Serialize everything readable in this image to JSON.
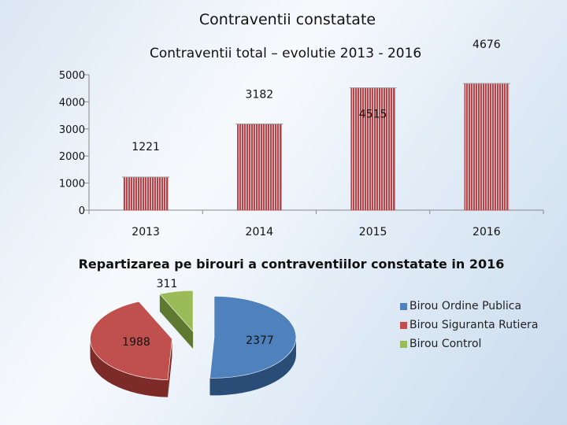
{
  "slide": {
    "title": "Contraventii constatate"
  },
  "chart_data": [
    {
      "type": "bar",
      "title": "Contraventii total – evolutie 2013 - 2016",
      "categories": [
        "2013",
        "2014",
        "2015",
        "2016"
      ],
      "values": [
        1221,
        3182,
        4515,
        4676
      ],
      "data_labels": [
        "1221",
        "3182",
        "4515",
        "4676"
      ],
      "yticks": [
        "0",
        "1000",
        "2000",
        "3000",
        "4000",
        "5000"
      ],
      "ylim": [
        0,
        5000
      ],
      "bar_color": "#b8434a",
      "bar_stripe_color": "#ffffff",
      "grid": false
    },
    {
      "type": "pie",
      "title": "Repartizarea pe birouri a contraventiilor constatate in 2016",
      "labels": [
        "Birou Ordine Publica",
        "Birou Siguranta Rutiera",
        "Birou Control"
      ],
      "values": [
        2377,
        1988,
        311
      ],
      "data_labels": [
        "2377",
        "1988",
        "311"
      ],
      "colors": [
        "#4f81bd",
        "#c0504d",
        "#9bbb59"
      ],
      "dark_colors": [
        "#2a4d78",
        "#7d2b29",
        "#5f7a30"
      ],
      "legend_position": "right",
      "exploded": true,
      "three_d": true
    }
  ]
}
